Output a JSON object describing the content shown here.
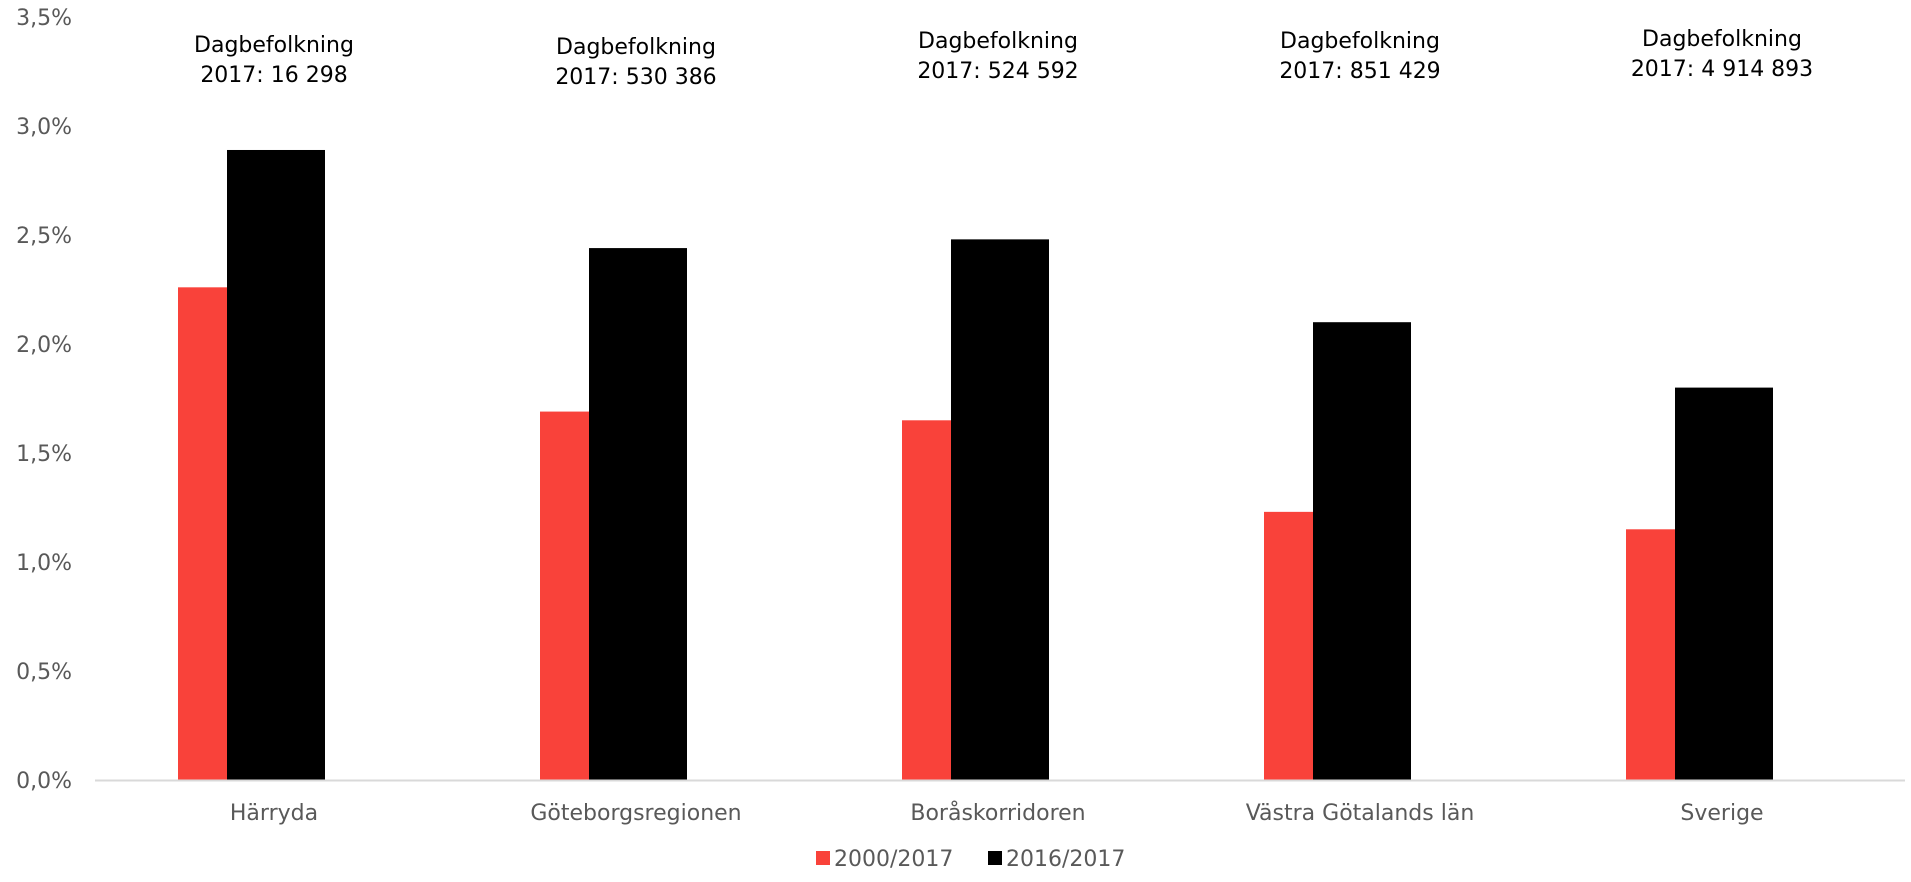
{
  "chart_data": {
    "type": "bar",
    "categories": [
      "Härryda",
      "Göteborgsregionen",
      "Boråskorridoren",
      "Västra Götalands län",
      "Sverige"
    ],
    "series": [
      {
        "name": "2000/2017",
        "color": "#F9423A",
        "values": [
          2.26,
          1.69,
          1.65,
          1.23,
          1.15
        ]
      },
      {
        "name": "2016/2017",
        "color": "#000000",
        "values": [
          2.89,
          2.44,
          2.48,
          2.1,
          1.8
        ]
      }
    ],
    "annotations": [
      {
        "line1": "Dagbefolkning",
        "line2": "2017: 16 298"
      },
      {
        "line1": "Dagbefolkning",
        "line2": "2017: 530 386"
      },
      {
        "line1": "Dagbefolkning",
        "line2": "2017: 524 592"
      },
      {
        "line1": "Dagbefolkning",
        "line2": "2017: 851 429"
      },
      {
        "line1": "Dagbefolkning",
        "line2": "2017: 4 914 893"
      }
    ],
    "ylim": [
      0,
      3.5
    ],
    "yticks": [
      "0,0%",
      "0,5%",
      "1,0%",
      "1,5%",
      "2,0%",
      "2,5%",
      "3,0%",
      "3,5%"
    ],
    "grid": false,
    "legend": "bottom"
  }
}
